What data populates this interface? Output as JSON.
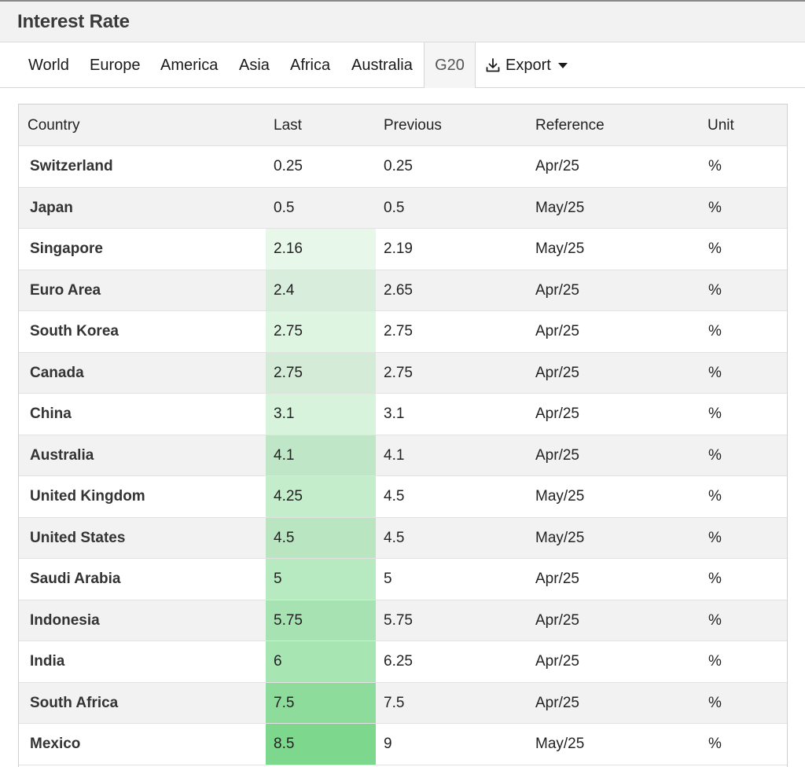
{
  "header": {
    "title": "Interest Rate"
  },
  "tabs": [
    {
      "label": "World",
      "active": false
    },
    {
      "label": "Europe",
      "active": false
    },
    {
      "label": "America",
      "active": false
    },
    {
      "label": "Asia",
      "active": false
    },
    {
      "label": "Africa",
      "active": false
    },
    {
      "label": "Australia",
      "active": false
    },
    {
      "label": "G20",
      "active": true
    }
  ],
  "export": {
    "label": "Export",
    "icon": "download-icon"
  },
  "table": {
    "columns": [
      "Country",
      "Last",
      "Previous",
      "Reference",
      "Unit"
    ],
    "heat_color": "#7dd88e",
    "rows": [
      {
        "country": "Switzerland",
        "last": "0.25",
        "previous": "0.25",
        "reference": "Apr/25",
        "unit": "%"
      },
      {
        "country": "Japan",
        "last": "0.5",
        "previous": "0.5",
        "reference": "May/25",
        "unit": "%"
      },
      {
        "country": "Singapore",
        "last": "2.16",
        "previous": "2.19",
        "reference": "May/25",
        "unit": "%"
      },
      {
        "country": "Euro Area",
        "last": "2.4",
        "previous": "2.65",
        "reference": "Apr/25",
        "unit": "%"
      },
      {
        "country": "South Korea",
        "last": "2.75",
        "previous": "2.75",
        "reference": "Apr/25",
        "unit": "%"
      },
      {
        "country": "Canada",
        "last": "2.75",
        "previous": "2.75",
        "reference": "Apr/25",
        "unit": "%"
      },
      {
        "country": "China",
        "last": "3.1",
        "previous": "3.1",
        "reference": "Apr/25",
        "unit": "%"
      },
      {
        "country": "Australia",
        "last": "4.1",
        "previous": "4.1",
        "reference": "Apr/25",
        "unit": "%"
      },
      {
        "country": "United Kingdom",
        "last": "4.25",
        "previous": "4.5",
        "reference": "May/25",
        "unit": "%"
      },
      {
        "country": "United States",
        "last": "4.5",
        "previous": "4.5",
        "reference": "May/25",
        "unit": "%"
      },
      {
        "country": "Saudi Arabia",
        "last": "5",
        "previous": "5",
        "reference": "Apr/25",
        "unit": "%"
      },
      {
        "country": "Indonesia",
        "last": "5.75",
        "previous": "5.75",
        "reference": "Apr/25",
        "unit": "%"
      },
      {
        "country": "India",
        "last": "6",
        "previous": "6.25",
        "reference": "Apr/25",
        "unit": "%"
      },
      {
        "country": "South Africa",
        "last": "7.5",
        "previous": "7.5",
        "reference": "Apr/25",
        "unit": "%"
      },
      {
        "country": "Mexico",
        "last": "8.5",
        "previous": "9",
        "reference": "May/25",
        "unit": "%"
      }
    ]
  }
}
